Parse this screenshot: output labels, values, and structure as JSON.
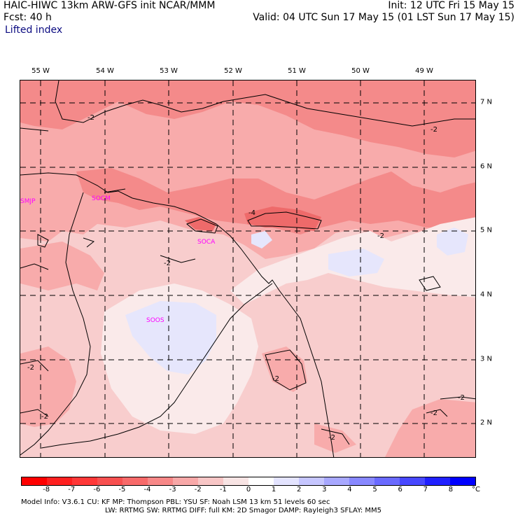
{
  "header": {
    "left_line1": "HAIC-HIWC 13km ARW-GFS init   NCAR/MMM",
    "left_line2": "Fcst:   40 h",
    "field_name": "Lifted index",
    "right_line1": "Init: 12 UTC Fri 15 May 15",
    "right_line2": "Valid: 04 UTC Sun 17 May 15 (01 LST Sun 17 May 15)"
  },
  "longitude_labels": [
    "55 W",
    "54 W",
    "53 W",
    "52 W",
    "51 W",
    "50 W",
    "49 W"
  ],
  "latitude_labels": [
    "7 N",
    "6 N",
    "5 N",
    "4 N",
    "3 N",
    "2 N"
  ],
  "stations": [
    "SMJP",
    "SOCM",
    "SOCA",
    "SOOS"
  ],
  "contour_labels": [
    "-2",
    "-2",
    "-4",
    "-2",
    "-2",
    "-2",
    "-2",
    "-2",
    "-2",
    "-2",
    "-2"
  ],
  "colorbar": {
    "labels": [
      "-8",
      "-7",
      "-6",
      "-5",
      "-4",
      "-3",
      "-2",
      "-1",
      "0",
      "1",
      "2",
      "3",
      "4",
      "5",
      "6",
      "7",
      "8"
    ],
    "unit": "°C",
    "colors": [
      "#ff0000",
      "#ff2020",
      "#ff3838",
      "#f85050",
      "#f86a6a",
      "#f88888",
      "#f8a8a8",
      "#f8c6c6",
      "#f8e4e4",
      "#ffffff",
      "#e4e4ff",
      "#c6c6ff",
      "#a8a8ff",
      "#8888ff",
      "#6a6aff",
      "#4848ff",
      "#2020ff",
      "#0000ff"
    ]
  },
  "model_info": {
    "line1": "Model Info: V3.6.1     CU: KF        MP: Thompson     PBL: YSU       SF: Noah LSM     13 km    51 levels   60 sec",
    "line2": "LW: RRTMG     SW: RRTMG   DIFF: full    KM: 2D Smagor DAMP: Rayleigh3   SFLAY: MM5"
  },
  "colors": {
    "li_minus1": "#f8cdcd",
    "li_minus2": "#f8abab",
    "li_minus3": "#f48a8a",
    "li_minus4": "#ee6a6a",
    "li_zero": "#faeaea",
    "li_plus1": "#e6e6fc"
  }
}
